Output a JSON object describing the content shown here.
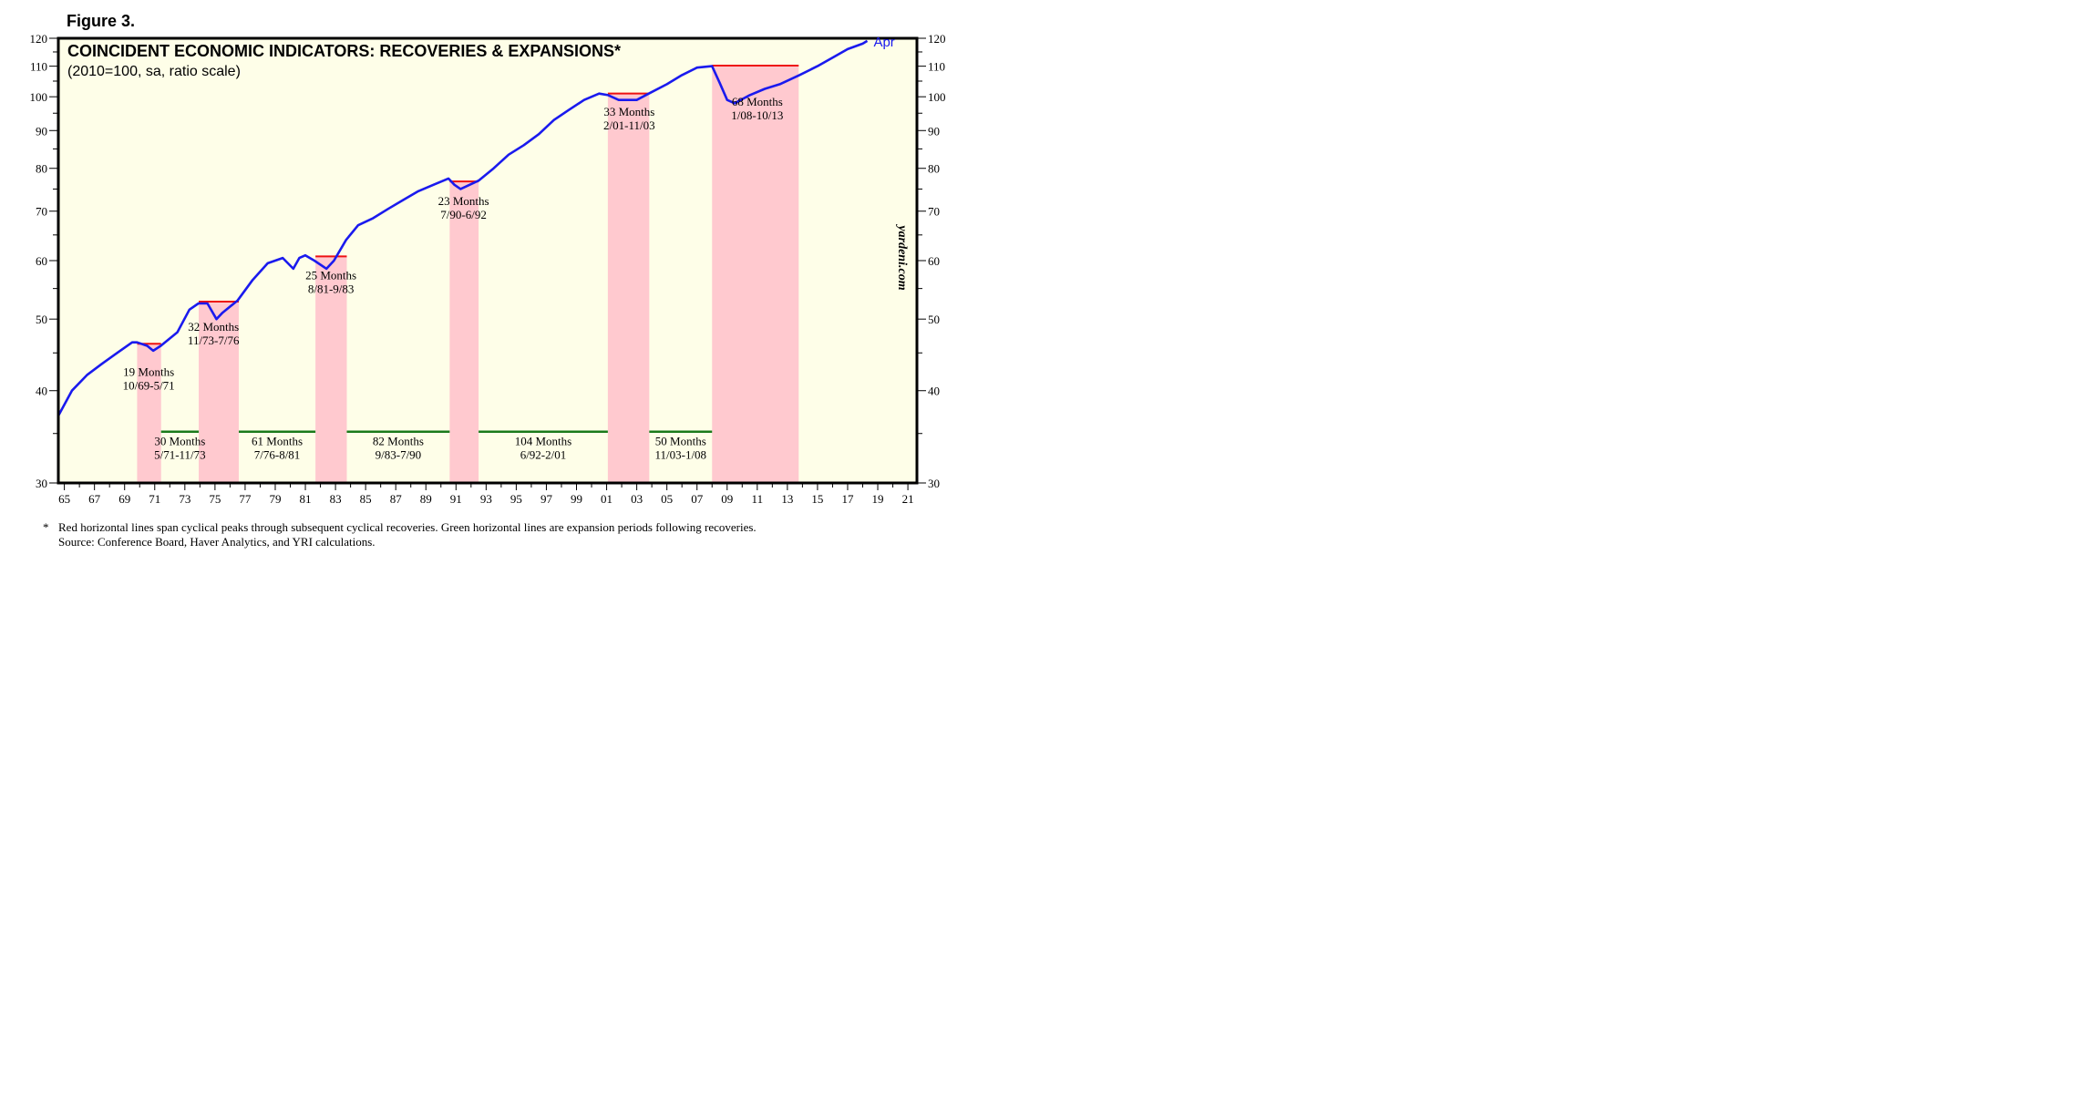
{
  "figure_label": "Figure 3.",
  "watermark": "yardeni.com",
  "footnote": {
    "marker": "*",
    "line1": "Red horizontal lines span cyclical peaks through subsequent cyclical recoveries. Green horizontal lines are expansion periods following recoveries.",
    "line2": "Source: Conference Board, Haver Analytics, and YRI calculations."
  },
  "colors": {
    "plot_background": "#fefee8",
    "series": "#1a1aee",
    "recovery_shade": "#ffc9cf",
    "recovery_peak_line": "#ee1111",
    "expansion_line": "#1a7a1a"
  },
  "chart_data": {
    "type": "line",
    "title": "COINCIDENT ECONOMIC INDICATORS: RECOVERIES & EXPANSIONS*",
    "subtitle": "(2010=100, sa, ratio scale)",
    "y_scale": "log",
    "ylim": [
      30,
      120
    ],
    "xlim": [
      1964.6,
      2021.6
    ],
    "y_ticks_major": [
      30,
      40,
      50,
      60,
      70,
      80,
      90,
      100,
      110,
      120
    ],
    "x_tick_labels": [
      "65",
      "67",
      "69",
      "71",
      "73",
      "75",
      "77",
      "79",
      "81",
      "83",
      "85",
      "87",
      "89",
      "91",
      "93",
      "95",
      "97",
      "99",
      "01",
      "03",
      "05",
      "07",
      "09",
      "11",
      "13",
      "15",
      "17",
      "19",
      "21"
    ],
    "end_label": "Apr",
    "series": [
      {
        "x": [
          1964.6,
          1965.5,
          1966.5,
          1967.5,
          1968.5,
          1969.5,
          1969.83,
          1970.5,
          1970.9,
          1971.4,
          1972.5,
          1973.3,
          1973.9,
          1974.5,
          1975.1,
          1975.5,
          1976.5,
          1977.5,
          1978.5,
          1979.5,
          1980.2,
          1980.6,
          1981.0,
          1981.6,
          1982.4,
          1982.9,
          1983.7,
          1984.5,
          1985.5,
          1986.5,
          1987.5,
          1988.5,
          1989.5,
          1990.5,
          1990.9,
          1991.3,
          1992.5,
          1993.5,
          1994.5,
          1995.5,
          1996.5,
          1997.5,
          1998.5,
          1999.5,
          2000.5,
          2001.1,
          2001.8,
          2003.0,
          2003.8,
          2005.0,
          2006.0,
          2007.0,
          2008.0,
          2008.5,
          2009.0,
          2009.5,
          2010.5,
          2011.5,
          2012.5,
          2013.8,
          2015.0,
          2016.0,
          2017.0,
          2018.0,
          2018.3
        ],
        "values": [
          37.0,
          40.0,
          42.0,
          43.5,
          45.0,
          46.5,
          46.5,
          46.0,
          45.3,
          46.0,
          48.0,
          51.5,
          52.5,
          52.5,
          50.0,
          51.0,
          53.0,
          56.5,
          59.5,
          60.5,
          58.5,
          60.5,
          61.0,
          60.0,
          58.5,
          60.0,
          64.0,
          67.0,
          68.5,
          70.5,
          72.5,
          74.5,
          76.0,
          77.5,
          76.0,
          75.0,
          77.0,
          80.0,
          83.5,
          86.0,
          89.0,
          93.0,
          96.0,
          99.0,
          101.0,
          100.5,
          99.0,
          99.0,
          101.0,
          104.0,
          107.0,
          109.5,
          110.0,
          104.5,
          99.0,
          98.0,
          100.5,
          102.5,
          104.0,
          107.0,
          110.0,
          113.0,
          116.0,
          118.0,
          119.0
        ]
      }
    ],
    "recoveries": [
      {
        "start": 1969.83,
        "end": 1971.42,
        "peak_level": 46.3,
        "label1": "19 Months",
        "label2": "10/69-5/71"
      },
      {
        "start": 1973.92,
        "end": 1976.58,
        "peak_level": 52.8,
        "label1": "32 Months",
        "label2": "11/73-7/76"
      },
      {
        "start": 1981.67,
        "end": 1983.75,
        "peak_level": 60.8,
        "label1": "25 Months",
        "label2": "8/81-9/83"
      },
      {
        "start": 1990.58,
        "end": 1992.5,
        "peak_level": 76.8,
        "label1": "23 Months",
        "label2": "7/90-6/92"
      },
      {
        "start": 2001.08,
        "end": 2003.83,
        "peak_level": 101.0,
        "label1": "33 Months",
        "label2": "2/01-11/03"
      },
      {
        "start": 2008.0,
        "end": 2013.75,
        "peak_level": 110.2,
        "label1": "68 Months",
        "label2": "1/08-10/13"
      }
    ],
    "expansions": [
      {
        "start": 1971.42,
        "end": 1973.92,
        "level": 35.2,
        "label1": "30 Months",
        "label2": "5/71-11/73"
      },
      {
        "start": 1976.58,
        "end": 1981.67,
        "level": 35.2,
        "label1": "61 Months",
        "label2": "7/76-8/81"
      },
      {
        "start": 1983.75,
        "end": 1990.58,
        "level": 35.2,
        "label1": "82 Months",
        "label2": "9/83-7/90"
      },
      {
        "start": 1992.5,
        "end": 2001.08,
        "level": 35.2,
        "label1": "104 Months",
        "label2": "6/92-2/01"
      },
      {
        "start": 2003.83,
        "end": 2008.0,
        "level": 35.2,
        "label1": "50 Months",
        "label2": "11/03-1/08"
      }
    ]
  }
}
